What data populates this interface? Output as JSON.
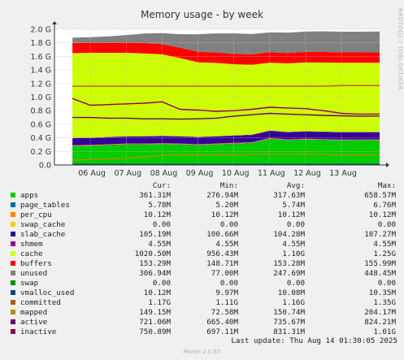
{
  "chart_data": {
    "type": "area",
    "title": "Memory usage - by week",
    "ylabel": "Bytes",
    "ylim": [
      0,
      2000000000
    ],
    "yticks": [
      {
        "value": 0,
        "label": "0.0"
      },
      {
        "value": 200000000,
        "label": "0.2 G"
      },
      {
        "value": 400000000,
        "label": "0.4 G"
      },
      {
        "value": 600000000,
        "label": "0.6 G"
      },
      {
        "value": 800000000,
        "label": "0.8 G"
      },
      {
        "value": 1000000000,
        "label": "1.0 G"
      },
      {
        "value": 1200000000,
        "label": "1.2 G"
      },
      {
        "value": 1400000000,
        "label": "1.4 G"
      },
      {
        "value": 1600000000,
        "label": "1.6 G"
      },
      {
        "value": 1800000000,
        "label": "1.8 G"
      },
      {
        "value": 2000000000,
        "label": "2.0 G"
      }
    ],
    "xrange": [
      "2025-08-05T00:00",
      "2025-08-14T01:30"
    ],
    "xticks": [
      {
        "value": "2025-08-06T00:00",
        "label": "06 Aug"
      },
      {
        "value": "2025-08-07T00:00",
        "label": "07 Aug"
      },
      {
        "value": "2025-08-08T00:00",
        "label": "08 Aug"
      },
      {
        "value": "2025-08-09T00:00",
        "label": "09 Aug"
      },
      {
        "value": "2025-08-10T00:00",
        "label": "10 Aug"
      },
      {
        "value": "2025-08-11T00:00",
        "label": "11 Aug"
      },
      {
        "value": "2025-08-12T00:00",
        "label": "12 Aug"
      },
      {
        "value": "2025-08-13T00:00",
        "label": "13 Aug"
      }
    ],
    "grid": true,
    "x": [
      "2025-08-05T12:00",
      "2025-08-06T00:00",
      "2025-08-06T12:00",
      "2025-08-07T00:00",
      "2025-08-07T12:00",
      "2025-08-08T00:00",
      "2025-08-08T12:00",
      "2025-08-09T00:00",
      "2025-08-09T12:00",
      "2025-08-10T00:00",
      "2025-08-10T12:00",
      "2025-08-11T00:00",
      "2025-08-11T12:00",
      "2025-08-12T00:00",
      "2025-08-12T12:00",
      "2025-08-13T00:00",
      "2025-08-13T12:00",
      "2025-08-14T01:30"
    ],
    "series": [
      {
        "name": "apps",
        "kind": "area",
        "color": "#00cc00",
        "values": [
          277,
          280,
          290,
          300,
          300,
          305,
          300,
          290,
          300,
          310,
          320,
          380,
          360,
          370,
          365,
          360,
          360,
          361
        ]
      },
      {
        "name": "page_tables",
        "kind": "stack",
        "color": "#0066b3",
        "values": [
          5.5,
          5.5,
          5.6,
          5.6,
          5.6,
          5.7,
          5.7,
          5.7,
          5.7,
          5.8,
          5.8,
          6.2,
          6.0,
          6.1,
          6.0,
          5.9,
          5.8,
          5.78
        ]
      },
      {
        "name": "per_cpu",
        "kind": "stack",
        "color": "#ff8000",
        "values": [
          10.12,
          10.12,
          10.12,
          10.12,
          10.12,
          10.12,
          10.12,
          10.12,
          10.12,
          10.12,
          10.12,
          10.12,
          10.12,
          10.12,
          10.12,
          10.12,
          10.12,
          10.12
        ]
      },
      {
        "name": "swap_cache",
        "kind": "stack",
        "color": "#ffcc00",
        "values": [
          0,
          0,
          0,
          0,
          0,
          0,
          0,
          0,
          0,
          0,
          0,
          0,
          0,
          0,
          0,
          0,
          0,
          0
        ]
      },
      {
        "name": "slab_cache",
        "kind": "stack",
        "color": "#330099",
        "values": [
          101,
          102,
          103,
          103,
          104,
          104,
          104,
          104,
          104,
          105,
          105,
          107,
          106,
          106,
          105,
          105,
          105,
          105.19
        ]
      },
      {
        "name": "shmem",
        "kind": "stack",
        "color": "#990099",
        "values": [
          4.55,
          4.55,
          4.55,
          4.55,
          4.55,
          4.55,
          4.55,
          4.55,
          4.55,
          4.55,
          4.55,
          4.55,
          4.55,
          4.55,
          4.55,
          4.55,
          4.55,
          4.55
        ]
      },
      {
        "name": "cache",
        "kind": "stack",
        "color": "#ccff00",
        "values": [
          1250,
          1250,
          1240,
          1230,
          1220,
          1200,
          1150,
          1100,
          1080,
          1050,
          1030,
          1000,
          1010,
          1015,
          1020,
          1020,
          1020,
          1020.5
        ]
      },
      {
        "name": "buffers",
        "kind": "stack",
        "color": "#ff0000",
        "values": [
          150,
          151,
          152,
          152,
          153,
          153,
          153,
          153,
          154,
          154,
          154,
          155,
          154,
          154,
          154,
          153,
          153,
          153.29
        ]
      },
      {
        "name": "unused",
        "kind": "stack",
        "color": "#808080",
        "values": [
          77,
          80,
          90,
          110,
          140,
          160,
          200,
          260,
          280,
          300,
          300,
          290,
          300,
          300,
          305,
          306,
          306,
          306.94
        ]
      },
      {
        "name": "swap",
        "kind": "stack",
        "color": "#008f00",
        "values": [
          0,
          0,
          0,
          0,
          0,
          0,
          0,
          0,
          0,
          0,
          0,
          0,
          0,
          0,
          0,
          0,
          0,
          0
        ]
      },
      {
        "name": "vmalloc_used",
        "kind": "line",
        "color": "#00487d",
        "values": [
          10.1,
          10.1,
          10.1,
          10.1,
          10.1,
          10.1,
          10.1,
          10.1,
          10.1,
          10.1,
          10.1,
          10.1,
          10.1,
          10.1,
          10.1,
          10.1,
          10.1,
          10.12
        ]
      },
      {
        "name": "committed",
        "kind": "line",
        "color": "#b35a00",
        "values": [
          1160,
          1160,
          1160,
          1160,
          1160,
          1160,
          1160,
          1160,
          1160,
          1160,
          1160,
          1160,
          1160,
          1160,
          1160,
          1170,
          1170,
          1170
        ]
      },
      {
        "name": "mapped",
        "kind": "line",
        "color": "#b38f00",
        "values": [
          73,
          80,
          90,
          100,
          120,
          140,
          150,
          150,
          150,
          150,
          155,
          160,
          160,
          158,
          155,
          150,
          150,
          149.15
        ]
      },
      {
        "name": "active",
        "kind": "line",
        "color": "#6b006b",
        "values": [
          700,
          700,
          690,
          690,
          680,
          680,
          675,
          680,
          690,
          720,
          740,
          760,
          750,
          740,
          730,
          725,
          720,
          721.06
        ]
      },
      {
        "name": "inactive",
        "kind": "line",
        "color": "#8f005c",
        "values": [
          980,
          880,
          890,
          900,
          910,
          930,
          820,
          810,
          790,
          800,
          820,
          850,
          840,
          830,
          800,
          760,
          750,
          750.89
        ]
      }
    ]
  },
  "legend": {
    "headers": {
      "cur": "Cur:",
      "min": "Min:",
      "avg": "Avg:",
      "max": "Max:"
    },
    "rows": [
      {
        "name": "apps",
        "color": "#00cc00",
        "cur": "361.31M",
        "min": "276.94M",
        "avg": "317.63M",
        "max": "658.57M"
      },
      {
        "name": "page_tables",
        "color": "#0066b3",
        "cur": "5.78M",
        "min": "5.20M",
        "avg": "5.74M",
        "max": "6.76M"
      },
      {
        "name": "per_cpu",
        "color": "#ff8000",
        "cur": "10.12M",
        "min": "10.12M",
        "avg": "10.12M",
        "max": "10.12M"
      },
      {
        "name": "swap_cache",
        "color": "#ffcc00",
        "cur": "0.00",
        "min": "0.00",
        "avg": "0.00",
        "max": "0.00"
      },
      {
        "name": "slab_cache",
        "color": "#330099",
        "cur": "105.19M",
        "min": "100.66M",
        "avg": "104.28M",
        "max": "107.27M"
      },
      {
        "name": "shmem",
        "color": "#990099",
        "cur": "4.55M",
        "min": "4.55M",
        "avg": "4.55M",
        "max": "4.55M"
      },
      {
        "name": "cache",
        "color": "#ccff00",
        "cur": "1020.50M",
        "min": "956.43M",
        "avg": "1.10G",
        "max": "1.25G"
      },
      {
        "name": "buffers",
        "color": "#ff0000",
        "cur": "153.29M",
        "min": "148.71M",
        "avg": "153.28M",
        "max": "155.99M"
      },
      {
        "name": "unused",
        "color": "#808080",
        "cur": "306.94M",
        "min": "77.00M",
        "avg": "247.69M",
        "max": "448.45M"
      },
      {
        "name": "swap",
        "color": "#008f00",
        "cur": "0.00",
        "min": "0.00",
        "avg": "0.00",
        "max": "0.00"
      },
      {
        "name": "vmalloc_used",
        "color": "#00487d",
        "cur": "10.12M",
        "min": "9.97M",
        "avg": "10.08M",
        "max": "10.35M"
      },
      {
        "name": "committed",
        "color": "#b35a00",
        "cur": "1.17G",
        "min": "1.11G",
        "avg": "1.16G",
        "max": "1.35G"
      },
      {
        "name": "mapped",
        "color": "#b38f00",
        "cur": "149.15M",
        "min": "72.58M",
        "avg": "150.74M",
        "max": "204.17M"
      },
      {
        "name": "active",
        "color": "#6b006b",
        "cur": "721.06M",
        "min": "665.40M",
        "avg": "735.67M",
        "max": "824.21M"
      },
      {
        "name": "inactive",
        "color": "#8f005c",
        "cur": "750.89M",
        "min": "697.11M",
        "avg": "831.31M",
        "max": "1.01G"
      }
    ]
  },
  "footer": {
    "last_update": "Last update: Thu Aug 14 01:30:05 2025",
    "munin_version": "Munin 2.0.67",
    "side_text": "RRDTOOL / TOBI OETIKER"
  }
}
